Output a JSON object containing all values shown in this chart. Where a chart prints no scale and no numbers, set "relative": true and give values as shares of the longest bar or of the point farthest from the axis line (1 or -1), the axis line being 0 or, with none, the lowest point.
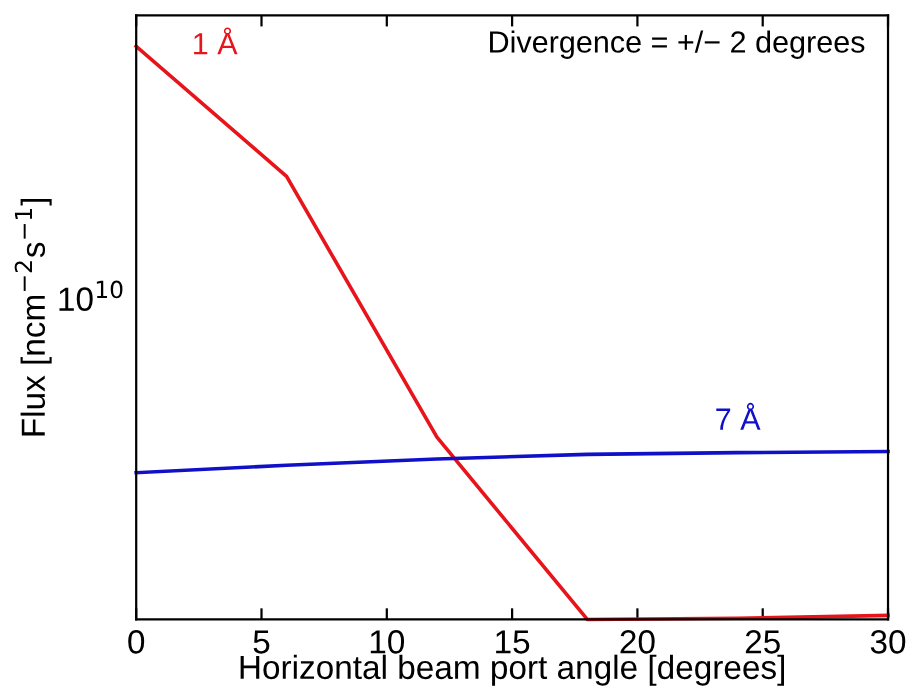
{
  "chart_data": {
    "type": "line",
    "xlabel": "Horizontal beam port angle [degrees]",
    "ylabel": "Flux [ncm$^{−2}$s$^{−1}$]",
    "x": [
      0,
      6,
      12,
      18,
      24,
      30
    ],
    "relative": true,
    "series": [
      {
        "name": "1 Å",
        "color": "#e8141c",
        "values": [
          1,
          0.773,
          0.318,
          0,
          0.002,
          0.007
        ]
      },
      {
        "name": "7 Å",
        "color": "#1010c8",
        "values": [
          0.256,
          0.269,
          0.28,
          0.288,
          0.291,
          0.293
        ]
      }
    ],
    "annotations": [
      "Divergence = +/− 2 degrees",
      "10$^{10}$"
    ],
    "xlim": [
      0,
      30
    ],
    "xticks": [
      0,
      5,
      10,
      15,
      20,
      25,
      30
    ],
    "grid": false,
    "legend": false,
    "marker": "none",
    "line_style": "solid"
  }
}
